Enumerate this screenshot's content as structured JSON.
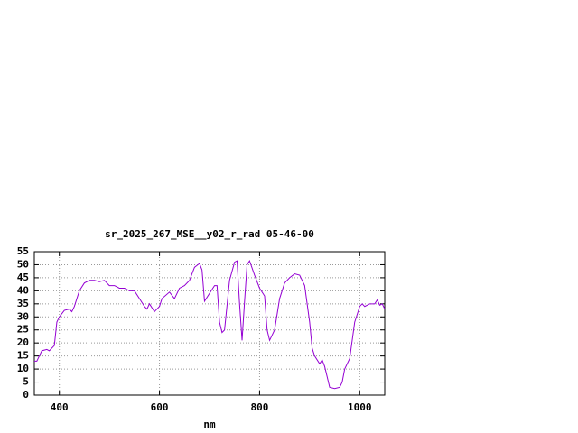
{
  "chart_data": {
    "type": "line",
    "title": "sr_2025_267_MSE__y02_r_rad 05-46-00",
    "x_label": "nm",
    "x": [
      350,
      355,
      365,
      375,
      380,
      390,
      395,
      400,
      410,
      420,
      425,
      430,
      440,
      450,
      460,
      470,
      480,
      490,
      500,
      510,
      520,
      530,
      540,
      550,
      560,
      570,
      575,
      580,
      590,
      600,
      605,
      620,
      630,
      640,
      650,
      660,
      670,
      680,
      685,
      690,
      700,
      710,
      715,
      720,
      725,
      730,
      740,
      750,
      755,
      760,
      765,
      770,
      775,
      780,
      790,
      800,
      810,
      815,
      820,
      830,
      840,
      850,
      860,
      870,
      880,
      890,
      900,
      905,
      910,
      920,
      925,
      930,
      935,
      940,
      950,
      960,
      965,
      970,
      980,
      985,
      990,
      1000,
      1005,
      1010,
      1020,
      1030,
      1035,
      1040,
      1045,
      1050
    ],
    "series": [
      {
        "name": "sr_2025_267_MSE__y02_r_rad",
        "color": "#9400d3",
        "values": [
          13,
          13,
          17,
          17.5,
          17,
          19,
          28,
          30,
          32.5,
          33,
          32,
          34,
          40,
          43,
          44,
          44,
          43.5,
          44,
          42,
          42,
          41,
          41,
          40,
          40,
          37,
          34,
          33,
          35,
          32,
          34,
          37,
          39.5,
          37,
          41,
          42,
          44,
          49,
          50.5,
          48,
          36,
          39,
          42,
          42,
          28,
          24,
          25,
          44,
          51,
          51.5,
          35,
          21,
          36,
          50,
          51.5,
          46,
          41,
          38,
          25,
          21,
          25,
          37,
          43,
          45,
          46.5,
          46,
          42,
          28,
          18,
          15,
          12,
          13.5,
          11,
          7,
          3,
          2.5,
          3,
          5,
          10,
          14,
          21,
          28,
          34,
          35,
          34,
          35,
          35,
          36.5,
          34.5,
          35,
          33
        ]
      }
    ],
    "xlim": [
      350,
      1050
    ],
    "ylim": [
      0,
      55
    ],
    "xticks": [
      400,
      600,
      800,
      1000
    ],
    "yticks": [
      0,
      5,
      10,
      15,
      20,
      25,
      30,
      35,
      40,
      45,
      50,
      55
    ],
    "grid": true
  }
}
